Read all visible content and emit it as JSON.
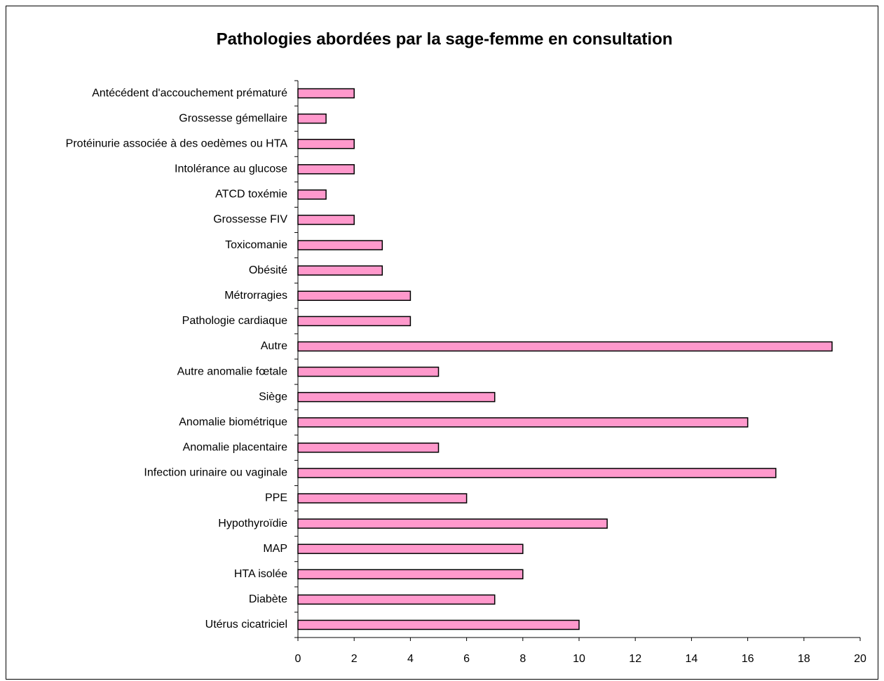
{
  "chart_data": {
    "type": "bar",
    "orientation": "horizontal",
    "title": "Pathologies abordées par la sage-femme en consultation",
    "categories": [
      "Antécédent d'accouchement prématuré",
      "Grossesse gémellaire",
      "Protéinurie associée à des oedèmes ou HTA",
      "Intolérance au glucose",
      "ATCD toxémie",
      "Grossesse FIV",
      "Toxicomanie",
      "Obésité",
      "Métrorragies",
      "Pathologie cardiaque",
      "Autre",
      "Autre anomalie fœtale",
      "Siège",
      "Anomalie biométrique",
      "Anomalie placentaire",
      "Infection urinaire ou vaginale",
      "PPE",
      "Hypothyroïdie",
      "MAP",
      "HTA isolée",
      "Diabète",
      "Utérus cicatriciel"
    ],
    "values": [
      2,
      1,
      2,
      2,
      1,
      2,
      3,
      3,
      4,
      4,
      19,
      5,
      7,
      16,
      5,
      17,
      6,
      11,
      8,
      8,
      7,
      10
    ],
    "color": "#ff99cc",
    "xlim": [
      0,
      20
    ],
    "xticks": [
      0,
      2,
      4,
      6,
      8,
      10,
      12,
      14,
      16,
      18,
      20
    ],
    "grid": false
  }
}
